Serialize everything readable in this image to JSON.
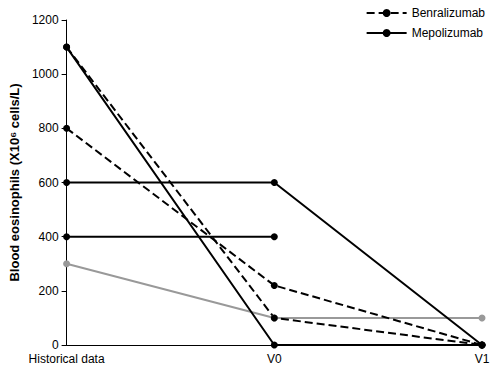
{
  "chart_data": {
    "type": "line",
    "ylabel": "Blood eosinophils (X10⁶ cells/L)",
    "categories": [
      "Historical data",
      "V0",
      "V1"
    ],
    "series": [
      {
        "name": "Benralizumab",
        "color": "#000000",
        "line_style": "dashed",
        "marker": "circle",
        "values": [
          1100,
          100,
          0
        ]
      },
      {
        "name": "Benralizumab",
        "color": "#000000",
        "line_style": "dashed",
        "marker": "circle",
        "values": [
          800,
          220,
          0
        ]
      },
      {
        "name": "Mepolizumab",
        "color": "#000000",
        "line_style": "solid",
        "marker": "circle",
        "values": [
          1100,
          0,
          0
        ]
      },
      {
        "name": "Mepolizumab",
        "color": "#000000",
        "line_style": "solid",
        "marker": "circle",
        "values": [
          600,
          600,
          0
        ]
      },
      {
        "name": "Mepolizumab",
        "color": "#000000",
        "line_style": "solid",
        "marker": "circle",
        "values": [
          400,
          400,
          null
        ]
      },
      {
        "color": "#999999",
        "line_style": "solid",
        "marker": "circle",
        "values": [
          300,
          100,
          100
        ]
      }
    ],
    "ylim": [
      0,
      1200
    ],
    "yticks": [
      0,
      200,
      400,
      600,
      800,
      1000,
      1200
    ],
    "legend": "upper right",
    "grid": false
  }
}
